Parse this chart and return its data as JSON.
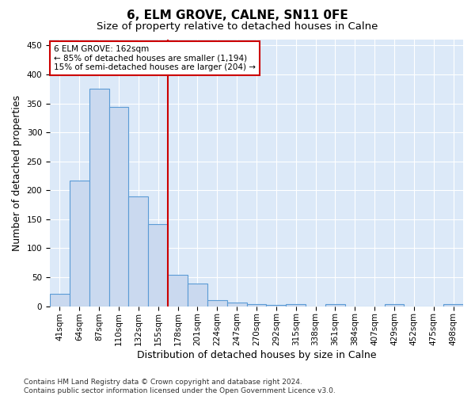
{
  "title": "6, ELM GROVE, CALNE, SN11 0FE",
  "subtitle": "Size of property relative to detached houses in Calne",
  "xlabel": "Distribution of detached houses by size in Calne",
  "ylabel": "Number of detached properties",
  "bar_labels": [
    "41sqm",
    "64sqm",
    "87sqm",
    "110sqm",
    "132sqm",
    "155sqm",
    "178sqm",
    "201sqm",
    "224sqm",
    "247sqm",
    "270sqm",
    "292sqm",
    "315sqm",
    "338sqm",
    "361sqm",
    "384sqm",
    "407sqm",
    "429sqm",
    "452sqm",
    "475sqm",
    "498sqm"
  ],
  "bar_heights": [
    22,
    217,
    375,
    344,
    190,
    141,
    54,
    39,
    11,
    7,
    4,
    2,
    3,
    0,
    4,
    0,
    0,
    4,
    0,
    0,
    3
  ],
  "bar_color": "#cad9ef",
  "bar_edge_color": "#5b9bd5",
  "vline_x": 5.5,
  "vline_color": "#cc0000",
  "annotation_line1": "6 ELM GROVE: 162sqm",
  "annotation_line2": "← 85% of detached houses are smaller (1,194)",
  "annotation_line3": "15% of semi-detached houses are larger (204) →",
  "annotation_box_color": "#ffffff",
  "annotation_box_edge": "#cc0000",
  "ylim": [
    0,
    460
  ],
  "yticks": [
    0,
    50,
    100,
    150,
    200,
    250,
    300,
    350,
    400,
    450
  ],
  "footer": "Contains HM Land Registry data © Crown copyright and database right 2024.\nContains public sector information licensed under the Open Government Licence v3.0.",
  "plot_bg_color": "#dce9f8",
  "title_fontsize": 11,
  "subtitle_fontsize": 9.5,
  "axis_label_fontsize": 9,
  "tick_fontsize": 7.5,
  "footer_fontsize": 6.5
}
